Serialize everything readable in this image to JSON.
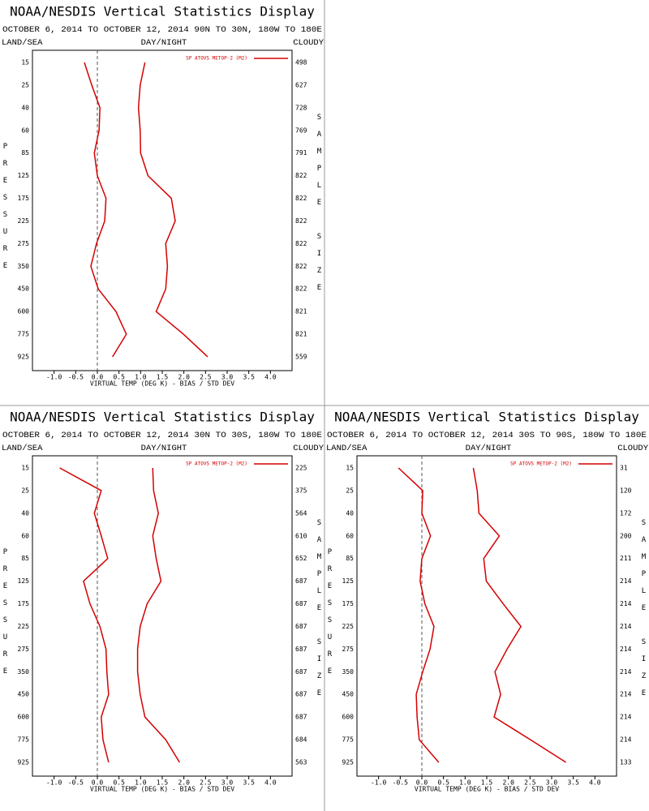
{
  "chart_data": [
    {
      "type": "line",
      "title": "NOAA/NESDIS Vertical Statistics Display",
      "subtitle": "OCTOBER 6, 2014 TO OCTOBER 12, 2014 90N TO 30N, 180W TO 180E",
      "left_header": "LAND/SEA",
      "center_header": "DAY/NIGHT",
      "right_header": "CLOUDY",
      "y_label": "PRESSURE",
      "y2_label": "SAMPLE SIZE",
      "x_label": "VIRTUAL TEMP (DEG K) - BIAS / STD DEV",
      "categories": [
        15,
        25,
        40,
        60,
        85,
        125,
        175,
        225,
        275,
        350,
        450,
        600,
        775,
        925
      ],
      "sample_size": [
        498,
        627,
        728,
        769,
        791,
        822,
        822,
        822,
        822,
        822,
        822,
        821,
        821,
        559
      ],
      "series": [
        {
          "name": "SP ATOVS METOP-2 (M2)",
          "color": "#d40000",
          "values": [
            -0.3,
            -0.13,
            0.06,
            0.04,
            -0.07,
            0.0,
            0.2,
            0.17,
            -0.02,
            -0.15,
            0.02,
            0.43,
            0.67,
            0.35
          ]
        },
        {
          "color": "#d40000",
          "values": [
            1.1,
            0.99,
            0.95,
            0.99,
            1.0,
            1.17,
            1.71,
            1.8,
            1.58,
            1.62,
            1.58,
            1.36,
            1.99,
            2.55
          ]
        }
      ],
      "xlim": [
        -1.5,
        4.5
      ],
      "xticks": [
        {
          "value": -1,
          "label": "-1.0"
        },
        -0.5,
        {
          "value": 0,
          "label": "0.0"
        },
        0.5,
        {
          "value": 1,
          "label": "1.0"
        },
        1.5,
        {
          "value": 2,
          "label": "2.0"
        },
        2.5,
        {
          "value": 3,
          "label": "3.0"
        },
        3.5,
        {
          "value": 4,
          "label": "4.0"
        }
      ],
      "legend": "upper right",
      "zero_line": true
    },
    {
      "type": "line",
      "title": "NOAA/NESDIS Vertical Statistics Display",
      "subtitle": "OCTOBER 6, 2014 TO OCTOBER 12, 2014 30N TO 30S, 180W TO 180E",
      "left_header": "LAND/SEA",
      "center_header": "DAY/NIGHT",
      "right_header": "CLOUDY",
      "y_label": "PRESSURE",
      "y2_label": "SAMPLE SIZE",
      "x_label": "VIRTUAL TEMP (DEG K) - BIAS / STD DEV",
      "categories": [
        15,
        25,
        40,
        60,
        85,
        125,
        175,
        225,
        275,
        350,
        450,
        600,
        775,
        925
      ],
      "sample_size": [
        225,
        375,
        564,
        610,
        652,
        687,
        687,
        687,
        687,
        687,
        687,
        687,
        684,
        563
      ],
      "series": [
        {
          "name": "SP ATOVS METOP-2 (M2)",
          "color": "#d40000",
          "values": [
            -0.87,
            0.09,
            -0.07,
            0.09,
            0.24,
            -0.32,
            -0.17,
            0.06,
            0.2,
            0.22,
            0.26,
            0.09,
            0.13,
            0.26
          ]
        },
        {
          "color": "#d40000",
          "values": [
            1.28,
            1.3,
            1.41,
            1.28,
            1.36,
            1.47,
            1.15,
            0.99,
            0.93,
            0.93,
            0.99,
            1.1,
            1.58,
            1.9
          ]
        }
      ],
      "xlim": [
        -1.5,
        4.5
      ],
      "xticks": [
        {
          "value": -1,
          "label": "-1.0"
        },
        -0.5,
        {
          "value": 0,
          "label": "0.0"
        },
        0.5,
        {
          "value": 1,
          "label": "1.0"
        },
        1.5,
        {
          "value": 2,
          "label": "2.0"
        },
        2.5,
        {
          "value": 3,
          "label": "3.0"
        },
        3.5,
        {
          "value": 4,
          "label": "4.0"
        }
      ],
      "legend": "upper right",
      "zero_line": true
    },
    {
      "type": "line",
      "title": "NOAA/NESDIS Vertical Statistics Display",
      "subtitle": "OCTOBER 6, 2014 TO OCTOBER 12, 2014 30S TO 90S, 180W TO 180E",
      "left_header": "LAND/SEA",
      "center_header": "DAY/NIGHT",
      "right_header": "CLOUDY",
      "y_label": "PRESSURE",
      "y2_label": "SAMPLE SIZE",
      "x_label": "VIRTUAL TEMP (DEG K) - BIAS / STD DEV",
      "categories": [
        15,
        25,
        40,
        60,
        85,
        125,
        175,
        225,
        275,
        350,
        450,
        600,
        775,
        925
      ],
      "sample_size": [
        31,
        120,
        172,
        200,
        211,
        214,
        214,
        214,
        214,
        214,
        214,
        214,
        214,
        133
      ],
      "series": [
        {
          "name": "SP ATOVS METOP-2 (M2)",
          "color": "#d40000",
          "values": [
            -0.54,
            0.02,
            0.0,
            0.2,
            0.0,
            -0.04,
            0.07,
            0.28,
            0.19,
            0.02,
            -0.13,
            -0.11,
            -0.06,
            0.39
          ]
        },
        {
          "color": "#d40000",
          "values": [
            1.19,
            1.28,
            1.32,
            1.79,
            1.43,
            1.49,
            1.88,
            2.29,
            1.97,
            1.69,
            1.82,
            1.67,
            2.51,
            3.33
          ]
        }
      ],
      "xlim": [
        -1.5,
        4.5
      ],
      "xticks": [
        {
          "value": -1,
          "label": "-1.0"
        },
        -0.5,
        {
          "value": 0,
          "label": "0.0"
        },
        0.5,
        {
          "value": 1,
          "label": "1.0"
        },
        1.5,
        {
          "value": 2,
          "label": "2.0"
        },
        2.5,
        {
          "value": 3,
          "label": "3.0"
        },
        3.5,
        {
          "value": 4,
          "label": "4.0"
        }
      ],
      "legend": "upper right",
      "zero_line": true
    }
  ]
}
